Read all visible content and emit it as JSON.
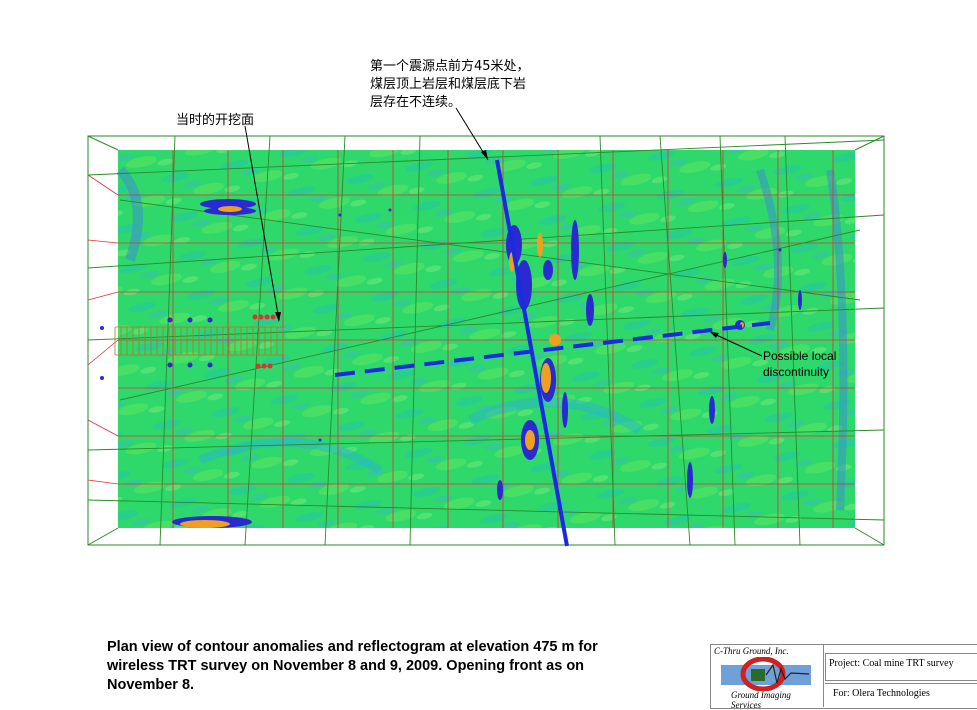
{
  "annotations": {
    "seismic_note": [
      "第一个震源点前方45米处，",
      "煤层顶上岩层和煤层底下岩",
      "层存在不连续。"
    ],
    "front_note": "当时的开挖面",
    "discontinuity_note": [
      "Possible local",
      "discontinuity"
    ]
  },
  "caption": [
    "Plan view of contour anomalies and reflectogram at elevation 475 m for",
    "wireless TRT survey on November 8 and 9, 2009. Opening front as on",
    "November 8."
  ],
  "title_block": {
    "logo_top": "C-Thru Ground, Inc.",
    "logo_bottom": "Ground Imaging Services",
    "project": "Project: Coal mine TRT survey",
    "for": "For: Olera Technologies"
  },
  "colors": {
    "background_field": "#2fd86a",
    "grid_red": "#e0303a",
    "grid_green": "#2a8a2a",
    "anomaly_blue": "#2a2ad0",
    "anomaly_orange": "#f0a020",
    "fault_line": "#1a2ae0"
  }
}
